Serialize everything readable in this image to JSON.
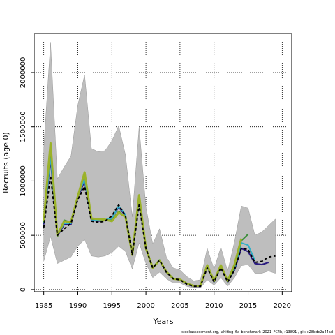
{
  "chart_data": {
    "type": "line",
    "xlabel": "Years",
    "ylabel": "Recruits (age 0)",
    "xlim": [
      1983.6,
      2021.4
    ],
    "ylim": [
      -20000,
      2360000
    ],
    "x_ticks": [
      1985,
      1990,
      1995,
      2000,
      2005,
      2010,
      2015,
      2020
    ],
    "y_ticks": [
      0,
      500000,
      1000000,
      1500000,
      2000000
    ],
    "y_tick_labels": [
      "0",
      "500000",
      "1000000",
      "1500000",
      "2000000"
    ],
    "grid": true,
    "grid_style": "dotted",
    "legend": "none",
    "band": {
      "color": "#bebebe",
      "x": [
        1985,
        1986,
        1987,
        1988,
        1989,
        1990,
        1991,
        1992,
        1993,
        1994,
        1995,
        1996,
        1997,
        1998,
        1999,
        2000,
        2001,
        2002,
        2003,
        2004,
        2005,
        2006,
        2007,
        2008,
        2009,
        2010,
        2011,
        2012,
        2013,
        2014,
        2015,
        2016,
        2017,
        2018,
        2019
      ],
      "upper": [
        1300000,
        2280000,
        1020000,
        1130000,
        1230000,
        1700000,
        1980000,
        1300000,
        1270000,
        1280000,
        1370000,
        1510000,
        1240000,
        670000,
        1500000,
        760000,
        420000,
        560000,
        300000,
        200000,
        180000,
        120000,
        80000,
        90000,
        380000,
        190000,
        390000,
        170000,
        440000,
        770000,
        750000,
        500000,
        530000,
        590000,
        650000
      ],
      "lower": [
        260000,
        490000,
        240000,
        270000,
        300000,
        400000,
        460000,
        310000,
        300000,
        310000,
        340000,
        400000,
        350000,
        190000,
        430000,
        240000,
        110000,
        160000,
        100000,
        60000,
        60000,
        30000,
        15000,
        15000,
        90000,
        40000,
        110000,
        30000,
        110000,
        220000,
        230000,
        150000,
        150000,
        170000,
        150000
      ]
    },
    "series": [
      {
        "color": "#2a1b7f",
        "width": 2,
        "dash": "",
        "x": [
          1985,
          1986,
          1987,
          1988,
          1989,
          1990,
          1991,
          1992,
          1993,
          1994,
          1995,
          1996,
          1997,
          1998,
          1999,
          2000,
          2001,
          2002,
          2003,
          2004,
          2005,
          2006,
          2007,
          2008,
          2009,
          2010,
          2011,
          2012,
          2013,
          2014,
          2015,
          2016,
          2017,
          2018
        ],
        "values": [
          600000,
          1200000,
          490000,
          600000,
          600000,
          850000,
          1000000,
          640000,
          630000,
          640000,
          660000,
          760000,
          680000,
          320000,
          820000,
          380000,
          200000,
          270000,
          160000,
          100000,
          90000,
          50000,
          30000,
          30000,
          210000,
          70000,
          210000,
          70000,
          180000,
          380000,
          350000,
          240000,
          230000,
          250000
        ]
      },
      {
        "color": "#2fb0c8",
        "width": 2,
        "dash": "",
        "x": [
          1985,
          1986,
          1987,
          1988,
          1989,
          1990,
          1991,
          1992,
          1993,
          1994,
          1995,
          1996,
          1997,
          1998,
          1999,
          2000,
          2001,
          2002,
          2003,
          2004,
          2005,
          2006,
          2007,
          2008,
          2009,
          2010,
          2011,
          2012,
          2013,
          2014,
          2015,
          2016
        ],
        "values": [
          610000,
          1230000,
          500000,
          610000,
          610000,
          860000,
          1020000,
          645000,
          640000,
          645000,
          655000,
          770000,
          690000,
          330000,
          830000,
          385000,
          205000,
          275000,
          165000,
          105000,
          92000,
          52000,
          32000,
          32000,
          215000,
          72000,
          215000,
          72000,
          190000,
          430000,
          410000,
          270000
        ]
      },
      {
        "color": "#3b8e3a",
        "width": 2,
        "dash": "",
        "x": [
          1985,
          1986,
          1987,
          1988,
          1989,
          1990,
          1991,
          1992,
          1993,
          1994,
          1995,
          1996,
          1997,
          1998,
          1999,
          2000,
          2001,
          2002,
          2003,
          2004,
          2005,
          2006,
          2007,
          2008,
          2009,
          2010,
          2011,
          2012,
          2013,
          2014,
          2015
        ],
        "values": [
          620000,
          1300000,
          490000,
          640000,
          620000,
          870000,
          1060000,
          650000,
          650000,
          640000,
          640000,
          720000,
          670000,
          320000,
          860000,
          380000,
          200000,
          270000,
          165000,
          100000,
          92000,
          55000,
          35000,
          35000,
          220000,
          75000,
          220000,
          75000,
          210000,
          450000,
          510000
        ]
      },
      {
        "color": "#9bb22a",
        "width": 3,
        "dash": "",
        "x": [
          1985,
          1986,
          1987,
          1988,
          1989,
          1990,
          1991,
          1992,
          1993,
          1994,
          1995,
          1996,
          1997,
          1998,
          1999,
          2000,
          2001,
          2002,
          2003,
          2004,
          2005,
          2006,
          2007,
          2008,
          2009,
          2010,
          2011,
          2012,
          2013,
          2014
        ],
        "values": [
          630000,
          1350000,
          500000,
          630000,
          620000,
          860000,
          1080000,
          655000,
          650000,
          645000,
          630000,
          710000,
          670000,
          320000,
          870000,
          380000,
          200000,
          270000,
          165000,
          100000,
          92000,
          55000,
          35000,
          35000,
          225000,
          78000,
          225000,
          78000,
          230000,
          470000
        ]
      },
      {
        "color": "#000000",
        "width": 2,
        "dash": "4,3",
        "x": [
          1985,
          1986,
          1987,
          1988,
          1989,
          1990,
          1991,
          1992,
          1993,
          1994,
          1995,
          1996,
          1997,
          1998,
          1999,
          2000,
          2001,
          2002,
          2003,
          2004,
          2005,
          2006,
          2007,
          2008,
          2009,
          2010,
          2011,
          2012,
          2013,
          2014,
          2015,
          2016,
          2017,
          2018,
          2019
        ],
        "values": [
          570000,
          1050000,
          500000,
          560000,
          610000,
          830000,
          950000,
          630000,
          620000,
          630000,
          680000,
          780000,
          680000,
          320000,
          780000,
          380000,
          200000,
          270000,
          160000,
          100000,
          90000,
          50000,
          30000,
          30000,
          200000,
          70000,
          200000,
          70000,
          180000,
          380000,
          370000,
          250000,
          260000,
          300000,
          310000
        ]
      }
    ]
  },
  "footer": "stockassessment.org,  whiting_6a_benchmark_2021_FC4b, r13891 ,  git: c28bdc2a44ad"
}
